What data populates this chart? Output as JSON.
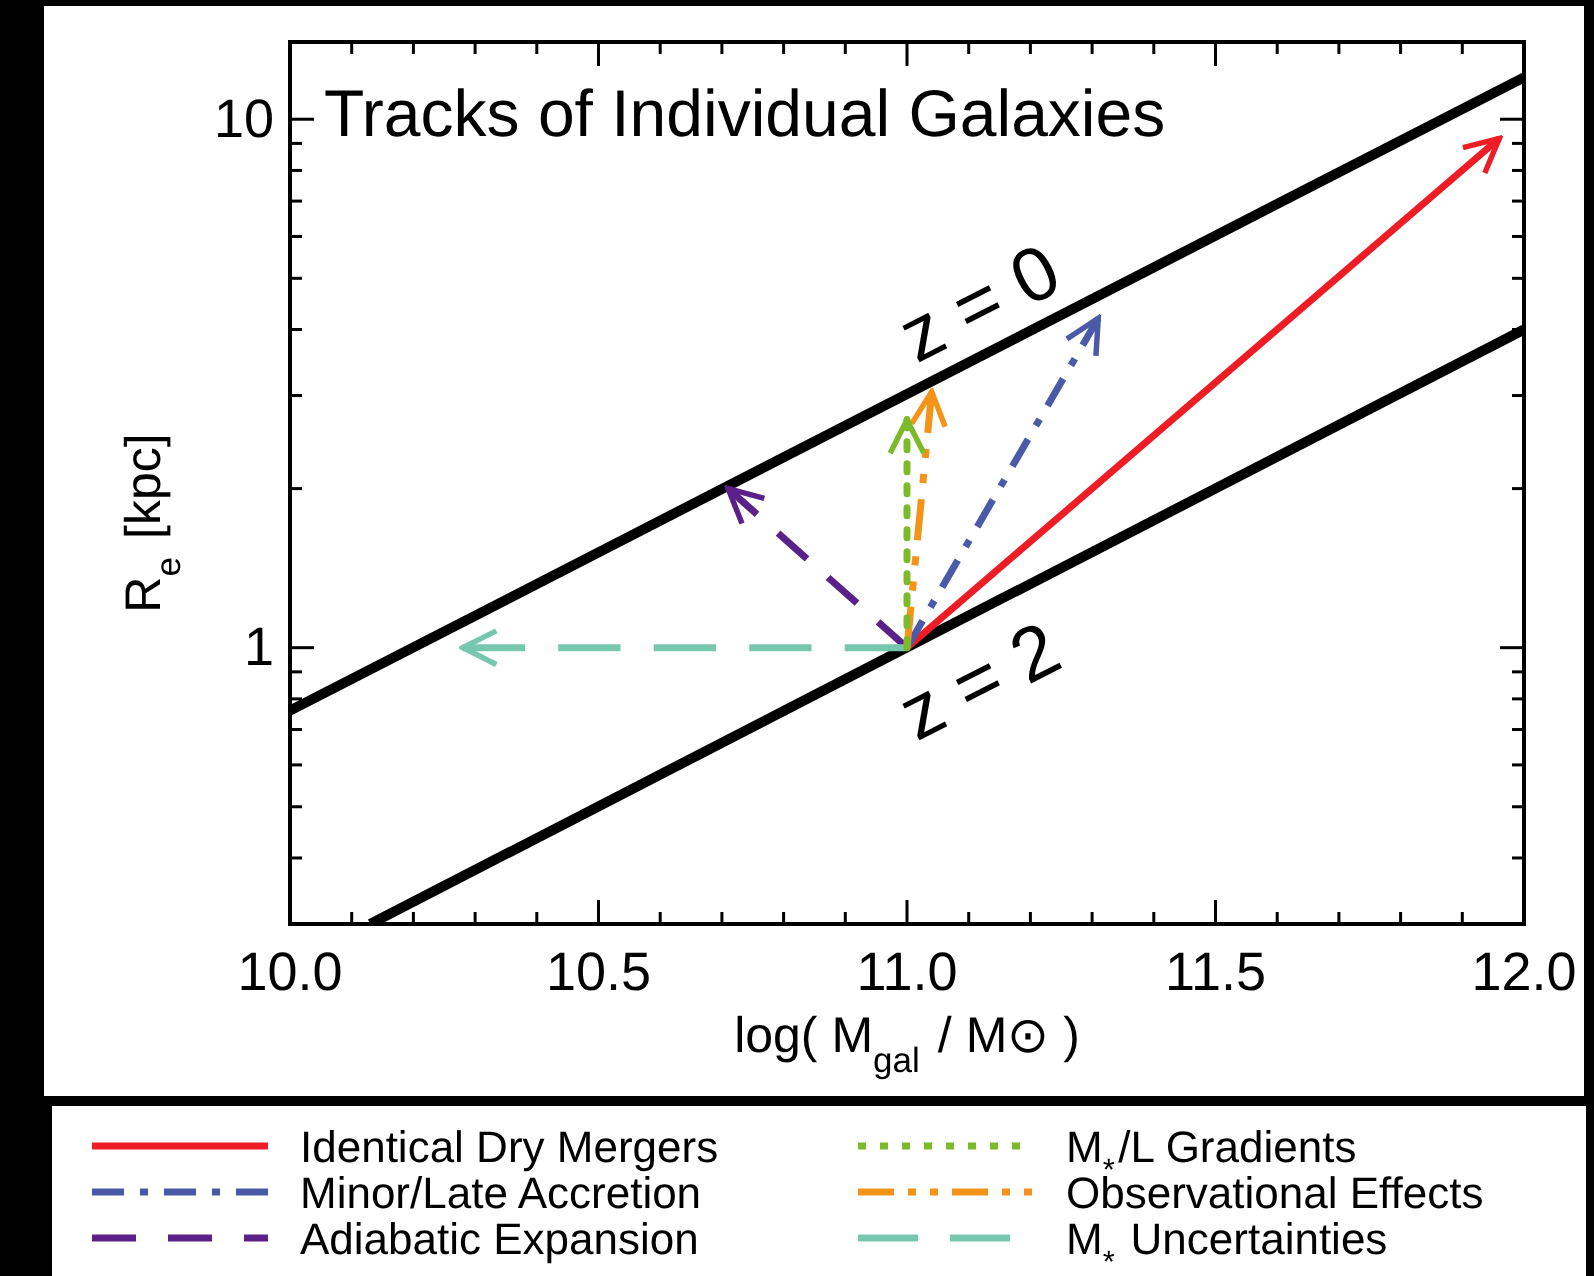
{
  "chart_data": {
    "type": "line",
    "title": "Tracks of Individual Galaxies",
    "xlabel": "log( M$_{gal}$ / M⊙ )",
    "ylabel": "R$_{e}$  [kpc]",
    "log": "y",
    "xlim": [
      10,
      12
    ],
    "ylim": [
      0.3,
      14
    ],
    "xticks": [
      {
        "value": 10,
        "label": "10.0"
      },
      {
        "value": 10.1,
        "label": null
      },
      {
        "value": 10.2,
        "label": null
      },
      {
        "value": 10.3,
        "label": null
      },
      {
        "value": 10.4,
        "label": null
      },
      {
        "value": 10.5,
        "label": "10.5"
      },
      {
        "value": 10.6,
        "label": null
      },
      {
        "value": 10.7,
        "label": null
      },
      {
        "value": 10.8,
        "label": null
      },
      {
        "value": 10.9,
        "label": null
      },
      {
        "value": 11,
        "label": "11.0"
      },
      {
        "value": 11.1,
        "label": null
      },
      {
        "value": 11.2,
        "label": null
      },
      {
        "value": 11.3,
        "label": null
      },
      {
        "value": 11.4,
        "label": null
      },
      {
        "value": 11.5,
        "label": "11.5"
      },
      {
        "value": 11.6,
        "label": null
      },
      {
        "value": 11.7,
        "label": null
      },
      {
        "value": 11.8,
        "label": null
      },
      {
        "value": 11.9,
        "label": null
      },
      {
        "value": 12,
        "label": "12.0"
      }
    ],
    "yticks": [
      {
        "value": 0.3,
        "label": null
      },
      {
        "value": 0.4,
        "label": null
      },
      {
        "value": 0.5,
        "label": null
      },
      {
        "value": 0.6,
        "label": null
      },
      {
        "value": 0.7,
        "label": null
      },
      {
        "value": 0.8,
        "label": null
      },
      {
        "value": 0.9,
        "label": null
      },
      1,
      {
        "value": 2,
        "label": null
      },
      {
        "value": 3,
        "label": null
      },
      {
        "value": 4,
        "label": null
      },
      {
        "value": 5,
        "label": null
      },
      {
        "value": 6,
        "label": null
      },
      {
        "value": 7,
        "label": null
      },
      {
        "value": 8,
        "label": null
      },
      {
        "value": 9,
        "label": null
      },
      10
    ],
    "legend": "bottom",
    "grid": false,
    "annotations": [
      "z = 0",
      "z = 2"
    ],
    "series": [
      {
        "color": "#000000",
        "x": [
          10,
          12
        ],
        "values": [
          0.76,
          12
        ],
        "line_style": "solid"
      },
      {
        "color": "#000000",
        "x": [
          10.13,
          12
        ],
        "values": [
          0.3,
          4
        ],
        "line_style": "solid"
      },
      {
        "name": "Identical Dry Mergers",
        "color": "#ee1c24",
        "x": [
          11,
          11.96
        ],
        "values": [
          1,
          9.2
        ],
        "line_style": "solid"
      },
      {
        "name": "Minor/Late Accretion",
        "color": "#4a5aa8",
        "x": [
          11,
          11.31
        ],
        "values": [
          1,
          4.2
        ],
        "line_style": "dashdot"
      },
      {
        "name": "Adiabatic Expansion",
        "color": "#5c2189",
        "x": [
          11,
          10.71
        ],
        "values": [
          1,
          2
        ],
        "line_style": "dashed"
      },
      {
        "name": "M$_{*}$/L Gradients",
        "color": "#7cba2a",
        "x": [
          11,
          11
        ],
        "values": [
          1,
          2.7
        ],
        "line_style": "dotted"
      },
      {
        "name": "Observational Effects",
        "color": "#f39419",
        "x": [
          11,
          11.04
        ],
        "values": [
          1,
          3.05
        ],
        "line_style": "dashdotdot"
      },
      {
        "name": "M$_{*}$ Uncertainties",
        "color": "#77c6ae",
        "x": [
          11,
          10.28
        ],
        "values": [
          1,
          1
        ],
        "line_style": "longdash"
      }
    ]
  }
}
